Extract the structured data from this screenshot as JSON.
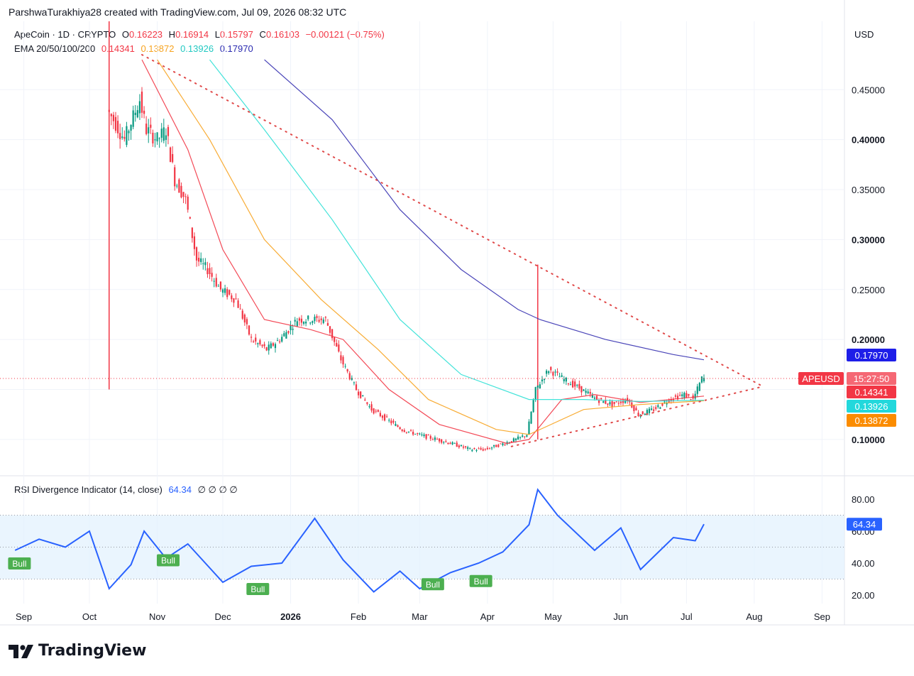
{
  "header": {
    "attribution": "ParshwaTurakhiya28 created with TradingView.com, Jul 09, 2026 08:32 UTC"
  },
  "legend": {
    "symbol": "ApeCoin · 1D · CRYPTO",
    "open_label": "O",
    "open": "0.16223",
    "high_label": "H",
    "high": "0.16914",
    "low_label": "L",
    "low": "0.15797",
    "close_label": "C",
    "close": "0.16103",
    "change": "−0.00121 (−0.75%)",
    "ema_label": "EMA 20/50/100/200",
    "ema20": "0.14341",
    "ema50": "0.13872",
    "ema100": "0.13926",
    "ema200": "0.17970",
    "rsi_label": "RSI Divergence Indicator (14, close)",
    "rsi_value": "64.34",
    "rsi_flags": "∅ ∅ ∅ ∅"
  },
  "currency": "USD",
  "price_tag": {
    "symbol": "APEUSD",
    "countdown": "15:27:50"
  },
  "brand": "TradingView",
  "colors": {
    "up": "#089981",
    "down": "#f23645",
    "ema20": "#f23645",
    "ema50": "#f7a31f",
    "ema100": "#2de0d5",
    "ema200": "#3530b0",
    "rsi": "#2962ff",
    "bull": "#4caf50",
    "trend": "#e04848"
  },
  "chart_data": [
    {
      "type": "candlestick",
      "title": "ApeCoin · 1D · CRYPTO",
      "x_axis_ticks": [
        "Sep",
        "Oct",
        "Nov",
        "Dec",
        "2026",
        "Feb",
        "Mar",
        "Apr",
        "May",
        "Jun",
        "Jul",
        "Aug",
        "Sep"
      ],
      "y_axis_ticks": [
        "0.10000",
        "0.15000",
        "0.20000",
        "0.25000",
        "0.30000",
        "0.35000",
        "0.40000",
        "0.45000"
      ],
      "ylim": [
        0.085,
        0.49
      ],
      "price_series": [
        [
          "2025-10-10",
          0.43
        ],
        [
          "2025-10-13",
          0.42
        ],
        [
          "2025-10-18",
          0.4
        ],
        [
          "2025-10-25",
          0.44
        ],
        [
          "2025-10-28",
          0.41
        ],
        [
          "2025-11-02",
          0.4
        ],
        [
          "2025-11-06",
          0.41
        ],
        [
          "2025-11-10",
          0.36
        ],
        [
          "2025-11-15",
          0.34
        ],
        [
          "2025-11-20",
          0.28
        ],
        [
          "2025-11-25",
          0.27
        ],
        [
          "2025-12-01",
          0.25
        ],
        [
          "2025-12-08",
          0.24
        ],
        [
          "2025-12-15",
          0.2
        ],
        [
          "2025-12-22",
          0.19
        ],
        [
          "2025-12-28",
          0.2
        ],
        [
          "2026-01-05",
          0.22
        ],
        [
          "2026-01-12",
          0.22
        ],
        [
          "2026-01-18",
          0.22
        ],
        [
          "2026-01-25",
          0.18
        ],
        [
          "2026-02-01",
          0.15
        ],
        [
          "2026-02-08",
          0.13
        ],
        [
          "2026-02-15",
          0.12
        ],
        [
          "2026-02-22",
          0.11
        ],
        [
          "2026-03-01",
          0.105
        ],
        [
          "2026-03-10",
          0.1
        ],
        [
          "2026-03-18",
          0.095
        ],
        [
          "2026-03-25",
          0.09
        ],
        [
          "2026-04-01",
          0.09
        ],
        [
          "2026-04-08",
          0.095
        ],
        [
          "2026-04-15",
          0.1
        ],
        [
          "2026-04-20",
          0.105
        ],
        [
          "2026-04-24",
          0.15
        ],
        [
          "2026-04-30",
          0.17
        ],
        [
          "2026-05-07",
          0.16
        ],
        [
          "2026-05-15",
          0.15
        ],
        [
          "2026-05-22",
          0.14
        ],
        [
          "2026-05-29",
          0.135
        ],
        [
          "2026-06-05",
          0.14
        ],
        [
          "2026-06-10",
          0.125
        ],
        [
          "2026-06-17",
          0.13
        ],
        [
          "2026-06-24",
          0.14
        ],
        [
          "2026-07-01",
          0.145
        ],
        [
          "2026-07-05",
          0.14
        ],
        [
          "2026-07-09",
          0.161
        ]
      ],
      "spikes": [
        {
          "date": "2025-10-10",
          "high": 0.76,
          "low": 0.15
        },
        {
          "date": "2026-04-24",
          "high": 0.275,
          "low": 0.1
        }
      ],
      "ema_series": [
        {
          "name": "EMA 20",
          "points": [
            [
              "2025-10-25",
              0.48
            ],
            [
              "2025-11-15",
              0.39
            ],
            [
              "2025-12-01",
              0.29
            ],
            [
              "2025-12-20",
              0.22
            ],
            [
              "2026-01-10",
              0.21
            ],
            [
              "2026-01-25",
              0.2
            ],
            [
              "2026-02-15",
              0.15
            ],
            [
              "2026-03-10",
              0.115
            ],
            [
              "2026-04-10",
              0.096
            ],
            [
              "2026-04-20",
              0.1
            ],
            [
              "2026-05-05",
              0.14
            ],
            [
              "2026-05-20",
              0.145
            ],
            [
              "2026-06-10",
              0.137
            ],
            [
              "2026-07-09",
              0.14341
            ]
          ]
        },
        {
          "name": "EMA 50",
          "points": [
            [
              "2025-11-01",
              0.48
            ],
            [
              "2025-11-25",
              0.4
            ],
            [
              "2025-12-20",
              0.3
            ],
            [
              "2026-01-15",
              0.24
            ],
            [
              "2026-02-10",
              0.19
            ],
            [
              "2026-03-05",
              0.14
            ],
            [
              "2026-04-05",
              0.11
            ],
            [
              "2026-04-20",
              0.105
            ],
            [
              "2026-05-15",
              0.13
            ],
            [
              "2026-06-10",
              0.135
            ],
            [
              "2026-07-09",
              0.13872
            ]
          ]
        },
        {
          "name": "EMA 100",
          "points": [
            [
              "2025-11-25",
              0.48
            ],
            [
              "2025-12-20",
              0.41
            ],
            [
              "2026-01-20",
              0.32
            ],
            [
              "2026-02-20",
              0.22
            ],
            [
              "2026-03-20",
              0.165
            ],
            [
              "2026-04-20",
              0.14
            ],
            [
              "2026-05-15",
              0.14
            ],
            [
              "2026-06-10",
              0.138
            ],
            [
              "2026-07-09",
              0.13926
            ]
          ]
        },
        {
          "name": "EMA 200",
          "points": [
            [
              "2025-12-20",
              0.48
            ],
            [
              "2026-01-20",
              0.42
            ],
            [
              "2026-02-20",
              0.33
            ],
            [
              "2026-03-20",
              0.27
            ],
            [
              "2026-04-15",
              0.23
            ],
            [
              "2026-04-25",
              0.22
            ],
            [
              "2026-05-25",
              0.2
            ],
            [
              "2026-06-25",
              0.185
            ],
            [
              "2026-07-09",
              0.1797
            ]
          ]
        }
      ],
      "trendlines": [
        {
          "from": [
            "2025-10-25",
            0.485
          ],
          "to": [
            "2026-08-05",
            0.153
          ]
        },
        {
          "from": [
            "2026-04-12",
            0.093
          ],
          "to": [
            "2026-08-05",
            0.153
          ]
        }
      ],
      "price_labels": [
        {
          "text": "0.17970",
          "value": 0.1797,
          "color": "#1e1ee8"
        },
        {
          "text": "0.14341",
          "value": 0.14341,
          "color": "#f23645"
        },
        {
          "text": "0.13926",
          "value": 0.13926,
          "color": "#22d8dc"
        },
        {
          "text": "0.13872",
          "value": 0.13872,
          "color": "#fb8c00"
        }
      ],
      "last_price": 0.161
    },
    {
      "type": "line",
      "title": "RSI Divergence Indicator (14, close)",
      "y_axis_ticks": [
        "20.00",
        "40.00",
        "60.00",
        "80.00"
      ],
      "ylim": [
        15,
        88
      ],
      "overbought": 70,
      "midline": 50,
      "oversold": 30,
      "series": [
        [
          "2025-08-28",
          48
        ],
        [
          "2025-09-08",
          55
        ],
        [
          "2025-09-20",
          50
        ],
        [
          "2025-10-01",
          60
        ],
        [
          "2025-10-10",
          24
        ],
        [
          "2025-10-20",
          39
        ],
        [
          "2025-10-26",
          60
        ],
        [
          "2025-11-05",
          43
        ],
        [
          "2025-11-15",
          52
        ],
        [
          "2025-12-01",
          28
        ],
        [
          "2025-12-14",
          38
        ],
        [
          "2025-12-28",
          40
        ],
        [
          "2026-01-12",
          68
        ],
        [
          "2026-01-25",
          42
        ],
        [
          "2026-02-08",
          22
        ],
        [
          "2026-02-20",
          35
        ],
        [
          "2026-03-01",
          24
        ],
        [
          "2026-03-15",
          34
        ],
        [
          "2026-03-28",
          40
        ],
        [
          "2026-04-08",
          47
        ],
        [
          "2026-04-20",
          64
        ],
        [
          "2026-04-24",
          86
        ],
        [
          "2026-05-03",
          70
        ],
        [
          "2026-05-20",
          48
        ],
        [
          "2026-06-01",
          62
        ],
        [
          "2026-06-10",
          36
        ],
        [
          "2026-06-25",
          56
        ],
        [
          "2026-07-05",
          54
        ],
        [
          "2026-07-09",
          64.34
        ]
      ],
      "markers": [
        {
          "label": "Bull",
          "date": "2025-08-30",
          "value": 40
        },
        {
          "label": "Bull",
          "date": "2025-11-06",
          "value": 42
        },
        {
          "label": "Bull",
          "date": "2025-12-17",
          "value": 24
        },
        {
          "label": "Bull",
          "date": "2026-03-07",
          "value": 27
        },
        {
          "label": "Bull",
          "date": "2026-03-29",
          "value": 29
        }
      ]
    }
  ]
}
